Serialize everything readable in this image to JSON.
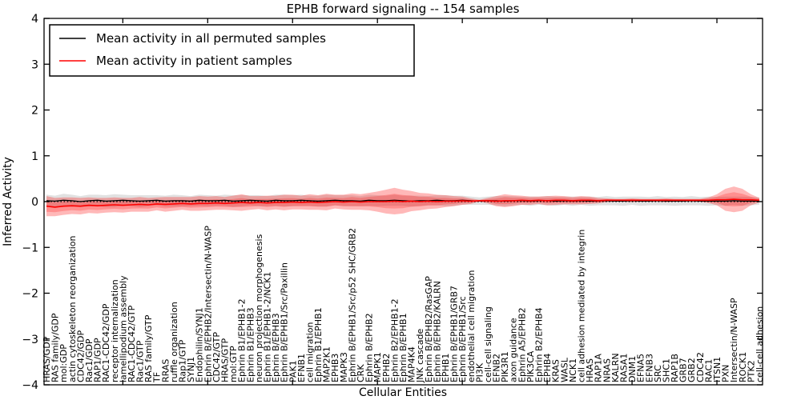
{
  "window": {
    "title": "EPHB forward signaling -- 154 samples"
  },
  "colors": {
    "patient_line": "#ff0000",
    "permuted_line": "#000000",
    "patient_band": "#ff0000",
    "permuted_band": "#aaaaaa",
    "background": "#ffffff",
    "axis": "#000000"
  },
  "chart_data": {
    "type": "line",
    "title": "EPHB forward signaling -- 154 samples",
    "xlabel": "Cellular Entities",
    "ylabel": "Inferred Activity",
    "ylim": [
      -4,
      4
    ],
    "yticks": [
      4,
      3,
      2,
      1,
      0,
      -1,
      -2,
      -3,
      -4
    ],
    "xtick_positions": [
      10,
      20,
      30,
      40,
      50,
      60,
      70,
      80
    ],
    "grid": false,
    "legend_position": "upper left",
    "zero_line": {
      "style": "dotted",
      "color": "#000000",
      "y": 0
    },
    "categories": [
      "HRAS/GDP",
      "RAS family/GDP",
      "mol:GDP",
      "actin cytoskeleton reorganization",
      "CDC42/GDP",
      "Rac1/GDP",
      "RAP1/GDP",
      "RAC1-CDC42/GDP",
      "receptor internalization",
      "lamellipodium assembly",
      "RAC1-CDC42/GTP",
      "Rac1/GTP",
      "RAS family/GTP",
      "TF",
      "RRAS",
      "ruffle organization",
      "Rap1/GTP",
      "SYNJ1",
      "Endophilin/SYNJ1",
      "Ephrin B/EPHB2/Intersectin/N-WASP",
      "CDC42/GTP",
      "HRAS/GTP",
      "mol:GTP",
      "Ephrin B1/EPHB1-2",
      "Ephrin B1/EPHB3",
      "neuron projection morphogenesis",
      "Ephrin B1/EPHB1-2/NCK1",
      "Ephrin B/EPHB3",
      "Ephrin B/EPHB1/Src/Paxillin",
      "PAK1",
      "EFNB1",
      "cell migration",
      "Ephrin B1/EPHB1",
      "MAP2K1",
      "EPHB3",
      "MAPK3",
      "Ephrin B/EPHB1/Src/p52 SHC/GRB2",
      "CRK",
      "Ephrin B/EPHB2",
      "MAPK1",
      "EPHB2",
      "Ephrin B2/EPHB1-2",
      "Ephrin B/EPHB1",
      "MAP4K4",
      "JNK cascade",
      "Ephrin B/EPHB2/RasGAP",
      "Ephrin B/EPHB2/KALRN",
      "EPHB1",
      "Ephrin B/EPHB1/GRB7",
      "Ephrin B/EPHB1/Src",
      "endothelial cell migration",
      "PI3K",
      "cell-cell signaling",
      "EFNB2",
      "PIK3R1",
      "axon guidance",
      "Ephrin A5/EPHB2",
      "PIK3CA",
      "Ephrin B2/EPHB4",
      "EPHB4",
      "KRAS",
      "WASL",
      "NCK1",
      "cell adhesion mediated by integrin",
      "HRAS",
      "RAP1A",
      "NRAS",
      "KALRN",
      "RASA1",
      "DNM1",
      "EFNA5",
      "EFNB3",
      "SRC",
      "SHC1",
      "RAP1B",
      "GRB7",
      "GRB2",
      "CDC42",
      "RAC1",
      "ITSN1",
      "PXN",
      "Intersectin/N-WASP",
      "ROCK1",
      "PTK2",
      "cell-cell adhesion"
    ],
    "series": [
      {
        "name": "Mean activity in all permuted samples",
        "color": "#000000",
        "values": [
          0.02,
          0.01,
          0.03,
          0.02,
          0.0,
          0.02,
          0.03,
          0.01,
          0.02,
          0.03,
          0.02,
          0.01,
          0.02,
          0.03,
          0.01,
          0.02,
          0.02,
          0.01,
          0.03,
          0.02,
          0.02,
          0.03,
          0.01,
          0.02,
          0.03,
          0.02,
          0.01,
          0.03,
          0.02,
          0.02,
          0.03,
          0.02,
          0.01,
          0.02,
          0.03,
          0.02,
          0.02,
          0.01,
          0.03,
          0.02,
          0.02,
          0.03,
          0.02,
          0.01,
          0.02,
          0.02,
          0.03,
          0.02,
          0.02,
          0.03,
          0.02,
          0.01,
          0.02,
          0.02,
          0.01,
          0.02,
          0.02,
          0.01,
          0.02,
          0.02,
          0.01,
          0.02,
          0.01,
          0.02,
          0.01,
          0.01,
          0.02,
          0.01,
          0.01,
          0.02,
          0.01,
          0.01,
          0.02,
          0.01,
          0.01,
          0.01,
          0.02,
          0.01,
          0.01,
          0.01,
          0.01,
          0.02,
          0.01,
          0.01,
          0.01
        ]
      },
      {
        "name": "Mean activity in patient samples",
        "color": "#ff0000",
        "values": [
          -0.1,
          -0.12,
          -0.1,
          -0.09,
          -0.1,
          -0.08,
          -0.09,
          -0.08,
          -0.07,
          -0.08,
          -0.07,
          -0.06,
          -0.07,
          -0.05,
          -0.06,
          -0.05,
          -0.04,
          -0.05,
          -0.04,
          -0.04,
          -0.03,
          -0.04,
          -0.03,
          -0.02,
          -0.03,
          -0.02,
          -0.03,
          -0.02,
          -0.02,
          -0.01,
          -0.02,
          -0.01,
          -0.02,
          -0.01,
          0.0,
          -0.01,
          0.0,
          -0.01,
          0.0,
          0.0,
          0.0,
          0.01,
          0.0,
          0.01,
          0.0,
          0.01,
          0.0,
          0.01,
          0.01,
          0.02,
          0.01,
          0.02,
          0.02,
          0.01,
          0.02,
          0.02,
          0.03,
          0.02,
          0.03,
          0.02,
          0.03,
          0.03,
          0.02,
          0.03,
          0.03,
          0.02,
          0.03,
          0.03,
          0.03,
          0.03,
          0.03,
          0.03,
          0.03,
          0.03,
          0.03,
          0.03,
          0.03,
          0.03,
          0.03,
          0.04,
          0.04,
          0.05,
          0.04,
          0.04,
          0.03
        ]
      }
    ],
    "halfwidth_arrays": {
      "permuted_std": [
        0.13,
        0.12,
        0.14,
        0.13,
        0.12,
        0.13,
        0.12,
        0.13,
        0.14,
        0.12,
        0.12,
        0.13,
        0.12,
        0.11,
        0.12,
        0.13,
        0.12,
        0.11,
        0.12,
        0.12,
        0.11,
        0.12,
        0.13,
        0.12,
        0.11,
        0.12,
        0.11,
        0.12,
        0.13,
        0.12,
        0.12,
        0.11,
        0.12,
        0.13,
        0.11,
        0.12,
        0.12,
        0.11,
        0.12,
        0.12,
        0.11,
        0.12,
        0.11,
        0.12,
        0.11,
        0.1,
        0.11,
        0.12,
        0.11,
        0.1,
        0.09,
        0.08,
        0.09,
        0.1,
        0.11,
        0.1,
        0.09,
        0.1,
        0.09,
        0.1,
        0.1,
        0.09,
        0.1,
        0.09,
        0.1,
        0.09,
        0.1,
        0.09,
        0.1,
        0.09,
        0.1,
        0.09,
        0.1,
        0.09,
        0.1,
        0.09,
        0.1,
        0.09,
        0.1,
        0.09,
        0.1,
        0.09,
        0.1,
        0.09,
        0.08
      ],
      "patient_std": [
        0.22,
        0.2,
        0.19,
        0.18,
        0.18,
        0.17,
        0.17,
        0.16,
        0.16,
        0.16,
        0.15,
        0.16,
        0.15,
        0.14,
        0.16,
        0.15,
        0.14,
        0.15,
        0.16,
        0.15,
        0.15,
        0.14,
        0.16,
        0.18,
        0.15,
        0.14,
        0.16,
        0.15,
        0.17,
        0.16,
        0.15,
        0.17,
        0.16,
        0.18,
        0.15,
        0.16,
        0.18,
        0.17,
        0.19,
        0.22,
        0.26,
        0.29,
        0.26,
        0.22,
        0.19,
        0.17,
        0.15,
        0.13,
        0.11,
        0.09,
        0.06,
        0.02,
        0.06,
        0.11,
        0.14,
        0.12,
        0.1,
        0.09,
        0.08,
        0.1,
        0.1,
        0.09,
        0.08,
        0.09,
        0.08,
        0.06,
        0.04,
        0.03,
        0.03,
        0.04,
        0.03,
        0.03,
        0.03,
        0.04,
        0.03,
        0.03,
        0.03,
        0.03,
        0.06,
        0.12,
        0.24,
        0.28,
        0.24,
        0.12,
        0.05
      ]
    },
    "bands": [
      {
        "name": "permuted-std-band",
        "series": 0,
        "halfwidths": "permuted_std",
        "scale": 1.0,
        "color": "#aaaaaa",
        "opacity": 0.35
      },
      {
        "name": "patient-std-band",
        "series": 1,
        "halfwidths": "patient_std",
        "scale": 1.0,
        "color": "#ff0000",
        "opacity": 0.28
      },
      {
        "name": "patient-inner-band",
        "series": 1,
        "halfwidths": "patient_std",
        "scale": 0.55,
        "color": "#ff0000",
        "opacity": 0.22
      }
    ]
  }
}
